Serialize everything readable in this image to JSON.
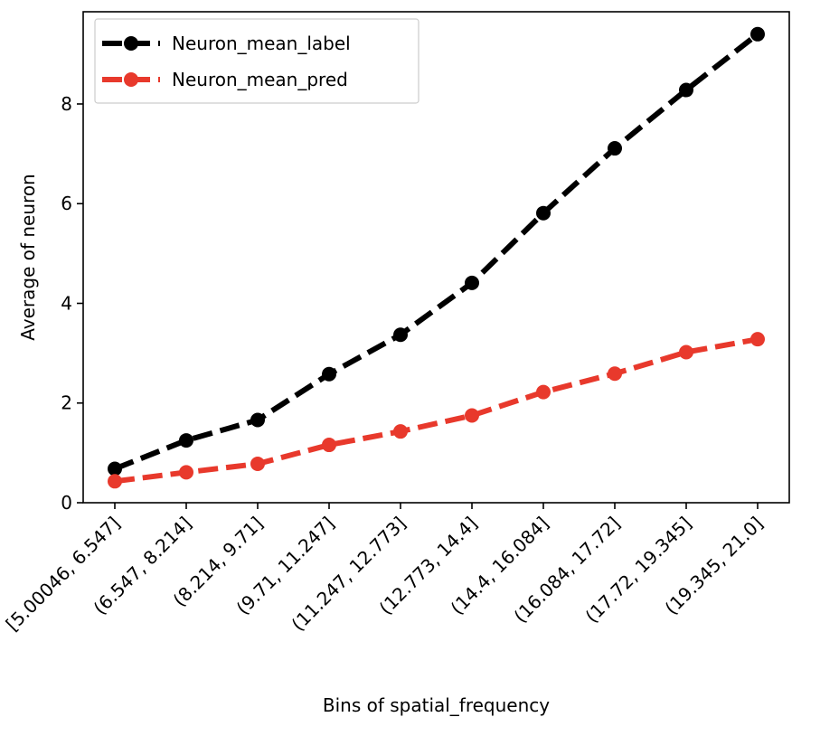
{
  "chart_data": {
    "type": "line",
    "xlabel": "Bins of spatial_frequency",
    "ylabel": "Average of neuron",
    "categories": [
      "[5.00046,  6.547]",
      "(6.547, 8.214]",
      "(8.214, 9.71]",
      "(9.71, 11.247]",
      "(11.247, 12.773]",
      "(12.773, 14.4]",
      "(14.4, 16.084]",
      "(16.084, 17.72]",
      "(17.72, 19.345]",
      "(19.345, 21.0]"
    ],
    "yticks": [
      "0",
      "2",
      "4",
      "6",
      "8"
    ],
    "ylim": [
      0,
      9.85
    ],
    "legend_position": "top-left",
    "grid": false,
    "series": [
      {
        "name": "Neuron_mean_label",
        "color": "#000000",
        "line_style": "dashed",
        "marker": "circle",
        "values": [
          0.68,
          1.25,
          1.66,
          2.58,
          3.37,
          4.41,
          5.81,
          7.11,
          8.28,
          9.4
        ]
      },
      {
        "name": "Neuron_mean_pred",
        "color": "#e8392c",
        "line_style": "dashed",
        "marker": "circle",
        "values": [
          0.43,
          0.61,
          0.78,
          1.16,
          1.43,
          1.75,
          2.22,
          2.59,
          3.02,
          3.28
        ]
      }
    ]
  }
}
